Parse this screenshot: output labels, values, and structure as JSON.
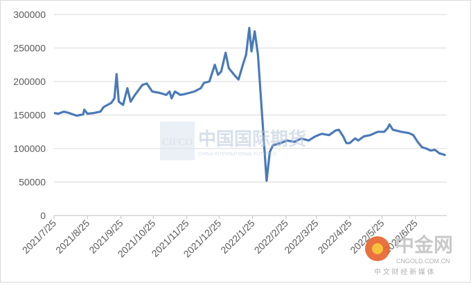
{
  "chart_data": {
    "type": "line",
    "x": [
      "2021/7/25",
      "2021/7/29",
      "2021/8/3",
      "2021/8/8",
      "2021/8/15",
      "2021/8/21",
      "2021/8/22",
      "2021/8/25",
      "2021/8/31",
      "2021/9/6",
      "2021/9/9",
      "2021/9/16",
      "2021/9/19",
      "2021/9/21",
      "2021/9/23",
      "2021/9/27",
      "2021/10/1",
      "2021/10/4",
      "2021/10/8",
      "2021/10/15",
      "2021/10/19",
      "2021/10/24",
      "2021/10/31",
      "2021/11/6",
      "2021/11/9",
      "2021/11/11",
      "2021/11/14",
      "2021/11/19",
      "2021/11/25",
      "2021/12/2",
      "2021/12/8",
      "2021/12/11",
      "2021/12/16",
      "2021/12/21",
      "2021/12/24",
      "2021/12/27",
      "2021/12/31",
      "2022/1/3",
      "2022/1/9",
      "2022/1/12",
      "2022/1/16",
      "2022/1/19",
      "2022/1/22",
      "2022/1/24",
      "2022/1/27",
      "2022/1/30",
      "2022/2/7",
      "2022/2/10",
      "2022/2/13",
      "2022/2/20",
      "2022/2/26",
      "2022/3/5",
      "2022/3/11",
      "2022/3/18",
      "2022/3/24",
      "2022/3/30",
      "2022/4/6",
      "2022/4/12",
      "2022/4/15",
      "2022/4/19",
      "2022/4/22",
      "2022/4/25",
      "2022/4/30",
      "2022/5/3",
      "2022/5/8",
      "2022/5/14",
      "2022/5/21",
      "2022/5/27",
      "2022/5/30",
      "2022/6/1",
      "2022/6/4",
      "2022/6/12",
      "2022/6/19",
      "2022/6/23",
      "2022/6/27",
      "2022/7/1",
      "2022/7/5",
      "2022/7/9",
      "2022/7/13",
      "2022/7/17",
      "2022/7/23"
    ],
    "series": [
      {
        "color": "#4a7ab8",
        "values": [
          153000,
          152000,
          155000,
          153000,
          149000,
          151000,
          158000,
          152000,
          153000,
          155000,
          162000,
          168000,
          175000,
          211000,
          170000,
          165000,
          190000,
          170000,
          180000,
          195000,
          197000,
          185000,
          183000,
          180000,
          185000,
          175000,
          185000,
          180000,
          182000,
          185000,
          190000,
          198000,
          200000,
          225000,
          210000,
          215000,
          243000,
          220000,
          208000,
          203000,
          225000,
          240000,
          280000,
          245000,
          275000,
          240000,
          52000,
          95000,
          105000,
          108000,
          112000,
          110000,
          115000,
          112000,
          118000,
          122000,
          120000,
          127000,
          128000,
          118000,
          108000,
          108000,
          115000,
          112000,
          118000,
          120000,
          125000,
          125000,
          130000,
          136000,
          128000,
          125000,
          123000,
          120000,
          110000,
          102000,
          100000,
          97000,
          98000,
          93000,
          90000
        ]
      }
    ],
    "xlim": [
      "2021/7/25",
      "2022/7/24"
    ],
    "xticks": [
      "2021/7/25",
      "2021/8/25",
      "2021/9/25",
      "2021/10/25",
      "2021/11/25",
      "2021/12/25",
      "2022/1/25",
      "2022/2/25",
      "2022/3/25",
      "2022/4/25",
      "2022/5/25",
      "2022/6/25"
    ],
    "ylim": [
      0,
      300000
    ],
    "yticks": [
      0,
      50000,
      100000,
      150000,
      200000,
      250000,
      300000
    ],
    "grid": true
  },
  "watermarks": {
    "left_logo": "CIFCO",
    "left_name": "中国国际期货",
    "left_sub": "CHINA INTERNATIONAL FUTURES",
    "right_name": "中金网",
    "right_url": "CNGOLD.COM.CN",
    "right_sub": "中 文 财 经 新 媒 体"
  }
}
